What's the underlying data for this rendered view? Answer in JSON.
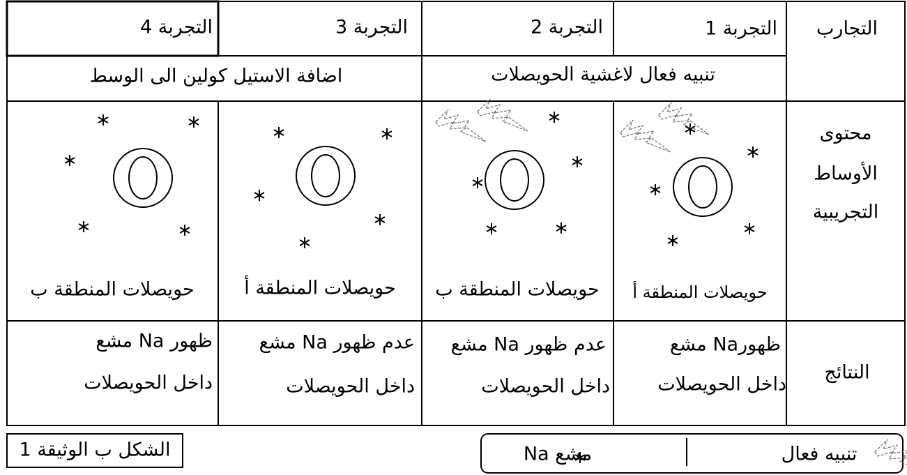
{
  "table": {
    "header": [
      "التجارب",
      "التجربة 1",
      "التجربة 2",
      "التجربة 3",
      "التجربة 4"
    ],
    "treatments": [
      "تنبيه فعال لاغشية الحويصلات",
      "اضافة الاستيل كولين الى الوسط"
    ],
    "media": {
      "label": [
        "محتوى",
        "الأوساط",
        "التجريبية"
      ],
      "cells": [
        "حويصلات المنطقة أ",
        "حويصلات المنطقة ب",
        "حويصلات المنطقة أ",
        "حويصلات المنطقة ب"
      ]
    },
    "results": {
      "label": "النتائج",
      "cells": [
        [
          "ظهورNa مشع",
          "داخل الحويصلات"
        ],
        [
          "عدم ظهور Na مشع",
          "داخل الحويصلات"
        ],
        [
          "عدم ظهور Na مشع",
          "داخل الحويصلات"
        ],
        [
          "ظهور Na مشع",
          "داخل الحويصلات"
        ]
      ]
    }
  },
  "caption": "الشكل ب الوثيقة 1",
  "legend": [
    "تنبيه فعال",
    "Na مشع"
  ]
}
